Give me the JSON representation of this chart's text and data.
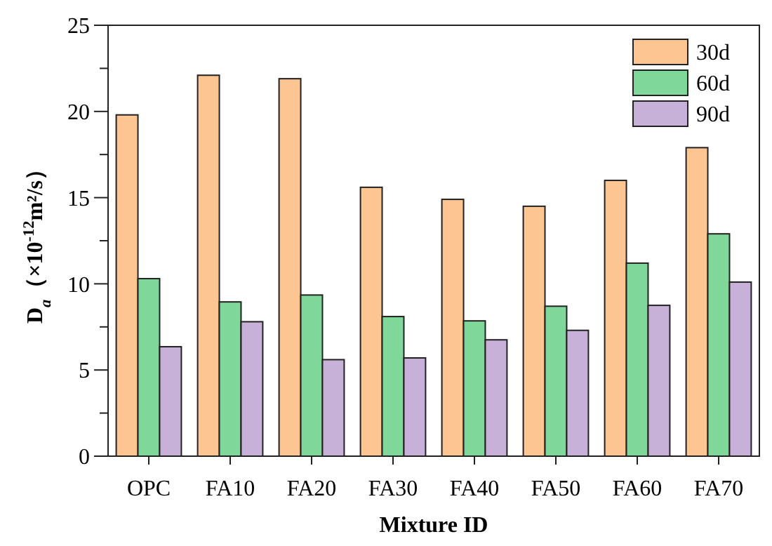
{
  "chart_data": {
    "type": "bar",
    "xlabel": "Mixture ID",
    "ylabel": "D$_{a}$（×10$^{-12}$m²/s）",
    "categories": [
      "OPC",
      "FA10",
      "FA20",
      "FA30",
      "FA40",
      "FA50",
      "FA60",
      "FA70"
    ],
    "series": [
      {
        "name": "30d",
        "color": "#fdc592",
        "values": [
          19.8,
          22.1,
          21.9,
          15.6,
          14.9,
          14.5,
          16.0,
          17.9
        ]
      },
      {
        "name": "60d",
        "color": "#7fd89a",
        "values": [
          10.3,
          8.95,
          9.35,
          8.1,
          7.85,
          8.7,
          11.2,
          12.9
        ]
      },
      {
        "name": "90d",
        "color": "#c8b1d8",
        "values": [
          6.35,
          7.8,
          5.6,
          5.7,
          6.75,
          7.3,
          8.75,
          10.1
        ]
      }
    ],
    "ylim": [
      0,
      25
    ],
    "yticks": [
      0,
      {
        "value": 2.5,
        "label": null
      },
      5,
      {
        "value": 7.5,
        "label": null
      },
      10,
      {
        "value": 12.5,
        "label": null
      },
      15,
      {
        "value": 17.5,
        "label": null
      },
      20,
      {
        "value": 22.5,
        "label": null
      },
      25
    ],
    "legend": "top right",
    "grid": false
  }
}
